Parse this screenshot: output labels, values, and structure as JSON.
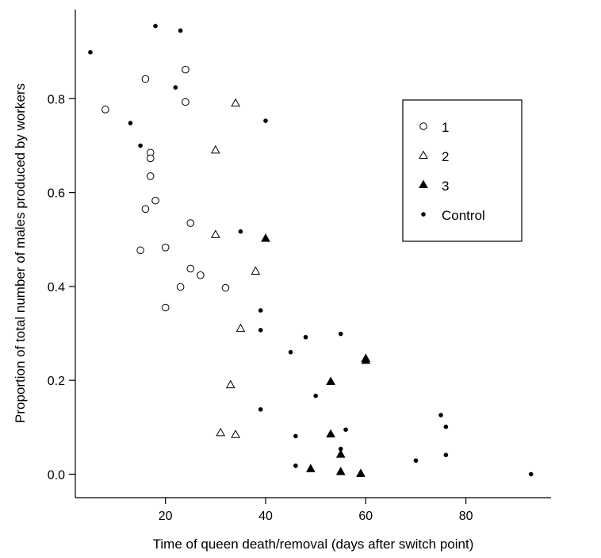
{
  "chart_data": {
    "type": "scatter",
    "title": "",
    "xlabel": "Time of queen death/removal (days after switch point)",
    "ylabel": "Proportion of total number of males produced by workers",
    "xlim": [
      2,
      97
    ],
    "ylim": [
      -0.05,
      0.99
    ],
    "x_ticks": [
      20,
      40,
      60,
      80
    ],
    "y_ticks": [
      0.0,
      0.2,
      0.4,
      0.6,
      0.8
    ],
    "x_tick_labels": [
      "20",
      "40",
      "60",
      "80"
    ],
    "y_tick_labels": [
      "0.0",
      "0.2",
      "0.4",
      "0.6",
      "0.8"
    ],
    "grid": false,
    "legend_position": "top-right",
    "series": [
      {
        "name": "1",
        "marker": "open-circle",
        "points": [
          [
            8,
            0.777
          ],
          [
            16,
            0.842
          ],
          [
            24,
            0.862
          ],
          [
            24,
            0.793
          ],
          [
            17,
            0.685
          ],
          [
            17,
            0.673
          ],
          [
            17,
            0.635
          ],
          [
            16,
            0.565
          ],
          [
            18,
            0.583
          ],
          [
            25,
            0.535
          ],
          [
            15,
            0.477
          ],
          [
            20,
            0.483
          ],
          [
            25,
            0.438
          ],
          [
            27,
            0.424
          ],
          [
            23,
            0.399
          ],
          [
            32,
            0.397
          ],
          [
            20,
            0.355
          ]
        ]
      },
      {
        "name": "2",
        "marker": "open-triangle",
        "points": [
          [
            34,
            0.79
          ],
          [
            30,
            0.69
          ],
          [
            30,
            0.51
          ],
          [
            38,
            0.432
          ],
          [
            35,
            0.31
          ],
          [
            33,
            0.19
          ],
          [
            31,
            0.088
          ],
          [
            34,
            0.084
          ]
        ]
      },
      {
        "name": "3",
        "marker": "filled-triangle",
        "points": [
          [
            40,
            0.502
          ],
          [
            60,
            0.246
          ],
          [
            60,
            0.242
          ],
          [
            53,
            0.197
          ],
          [
            53,
            0.085
          ],
          [
            55,
            0.042
          ],
          [
            49,
            0.011
          ],
          [
            55,
            0.005
          ],
          [
            59,
            0.001
          ]
        ]
      },
      {
        "name": "Control",
        "marker": "small-dot",
        "points": [
          [
            5,
            0.899
          ],
          [
            18,
            0.955
          ],
          [
            23,
            0.945
          ],
          [
            22,
            0.824
          ],
          [
            13,
            0.748
          ],
          [
            15,
            0.7
          ],
          [
            40,
            0.753
          ],
          [
            35,
            0.517
          ],
          [
            39,
            0.349
          ],
          [
            39,
            0.307
          ],
          [
            45,
            0.26
          ],
          [
            48,
            0.292
          ],
          [
            55,
            0.299
          ],
          [
            50,
            0.167
          ],
          [
            39,
            0.138
          ],
          [
            46,
            0.081
          ],
          [
            56,
            0.095
          ],
          [
            55,
            0.054
          ],
          [
            46,
            0.018
          ],
          [
            75,
            0.126
          ],
          [
            76,
            0.101
          ],
          [
            76,
            0.041
          ],
          [
            70,
            0.029
          ],
          [
            93,
            0.0
          ]
        ]
      }
    ]
  }
}
